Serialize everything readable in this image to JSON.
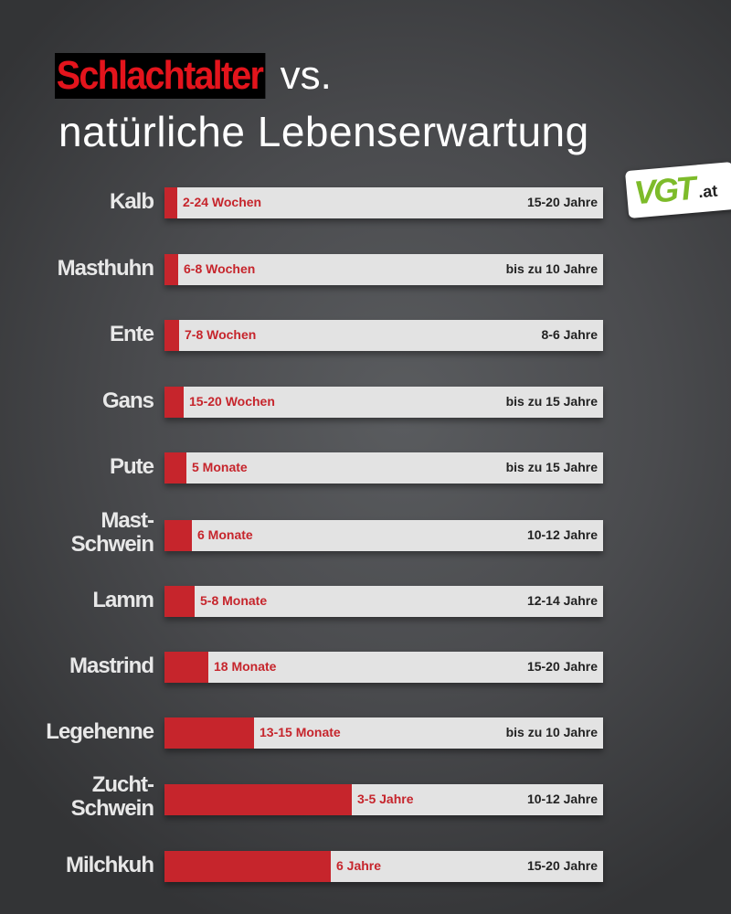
{
  "chart_data": {
    "type": "bar",
    "title_highlight": "Schlachtalter",
    "title_vs": "vs.",
    "title_line2": "natürliche Lebenserwartung",
    "logo_text": "VGT.at",
    "colors": {
      "slaughter": "#c6252c",
      "track": "#e3e3e3",
      "title_highlight": "#e3141c"
    },
    "rows": [
      {
        "animal": "Kalb",
        "slaughter_age": "2-24 Wochen",
        "life_expectancy": "15-20 Jahre",
        "fill_fraction": 0.029
      },
      {
        "animal": "Masthuhn",
        "slaughter_age": "6-8 Wochen",
        "life_expectancy": "bis zu 10 Jahre",
        "fill_fraction": 0.031
      },
      {
        "animal": "Ente",
        "slaughter_age": "7-8 Wochen",
        "life_expectancy": "8-6 Jahre",
        "fill_fraction": 0.033
      },
      {
        "animal": "Gans",
        "slaughter_age": "15-20 Wochen",
        "life_expectancy": "bis zu 15 Jahre",
        "fill_fraction": 0.044
      },
      {
        "animal": "Pute",
        "slaughter_age": "5 Monate",
        "life_expectancy": "bis zu 15 Jahre",
        "fill_fraction": 0.05
      },
      {
        "animal": "Mast-\nSchwein",
        "slaughter_age": "6 Monate",
        "life_expectancy": "10-12 Jahre",
        "fill_fraction": 0.063
      },
      {
        "animal": "Lamm",
        "slaughter_age": "5-8 Monate",
        "life_expectancy": "12-14 Jahre",
        "fill_fraction": 0.069
      },
      {
        "animal": "Mastrind",
        "slaughter_age": "18 Monate",
        "life_expectancy": "15-20 Jahre",
        "fill_fraction": 0.1
      },
      {
        "animal": "Legehenne",
        "slaughter_age": "13-15 Monate",
        "life_expectancy": "bis zu 10 Jahre",
        "fill_fraction": 0.204
      },
      {
        "animal": "Zucht-\nSchwein",
        "slaughter_age": "3-5 Jahre",
        "life_expectancy": "10-12 Jahre",
        "fill_fraction": 0.427
      },
      {
        "animal": "Milchkuh",
        "slaughter_age": "6 Jahre",
        "life_expectancy": "15-20 Jahre",
        "fill_fraction": 0.379
      }
    ]
  }
}
